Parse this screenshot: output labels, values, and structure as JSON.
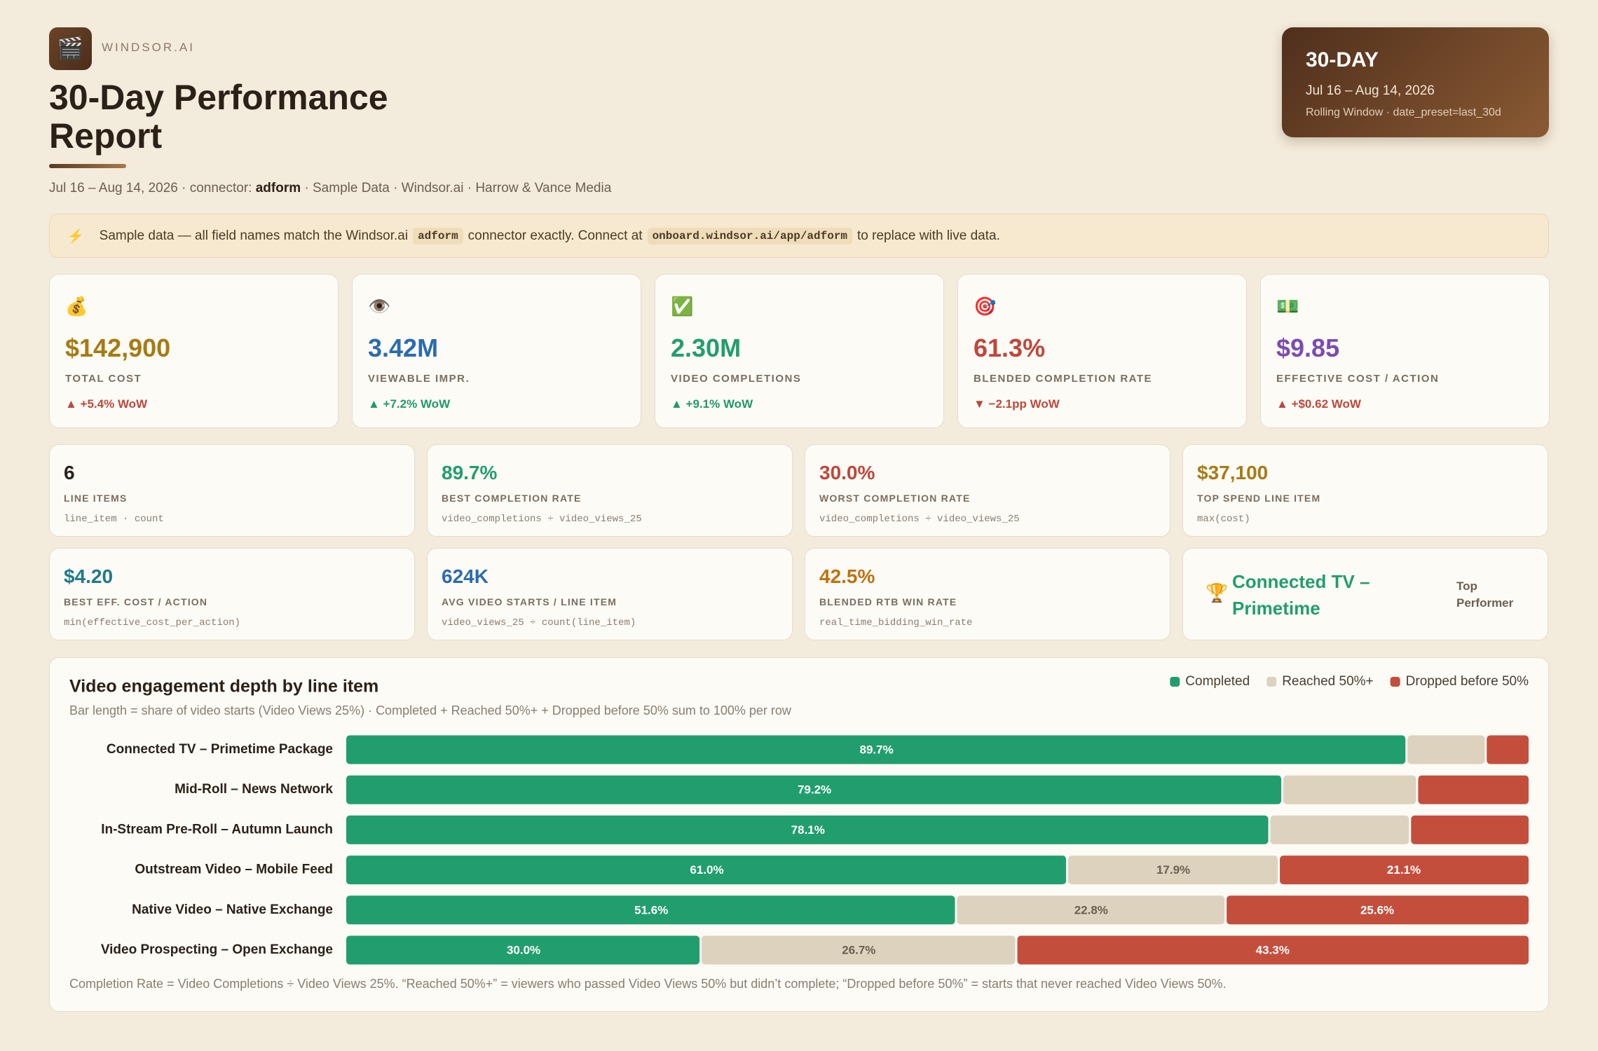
{
  "header": {
    "logo": "🎬",
    "brand": "WINDSOR.AI",
    "title": "30-Day Performance Report",
    "subtitle": {
      "dates": "Jul 16 – Aug 14, 2026 · connector:",
      "connector": "adform",
      "rest": "· Sample Data · Windsor.ai · Harrow & Vance Media"
    },
    "period": {
      "label": "30-DAY",
      "range": "Jul 16 – Aug 14, 2026",
      "note": "Rolling Window · date_preset=last_30d"
    }
  },
  "banner": {
    "icon": "⚡",
    "text_1": "Sample data — all field names match the Windsor.ai",
    "code_1": "adform",
    "text_2": "connector exactly. Connect at",
    "code_2": "onboard.windsor.ai/app/adform",
    "text_3": "to replace with live data."
  },
  "kpis": [
    {
      "icon": "💰",
      "value": "$142,900",
      "label": "TOTAL COST",
      "change": "▲ +5.4% WoW",
      "color": "#a87a12",
      "change_color": "#c0473a"
    },
    {
      "icon": "👁️",
      "value": "3.42M",
      "label": "VIEWABLE IMPR.",
      "change": "▲ +7.2% WoW",
      "color": "#2a6cb0",
      "change_color": "#1f9a68"
    },
    {
      "icon": "✅",
      "value": "2.30M",
      "label": "VIDEO COMPLETIONS",
      "change": "▲ +9.1% WoW",
      "color": "#219e6d",
      "change_color": "#1f9a68"
    },
    {
      "icon": "🎯",
      "value": "61.3%",
      "label": "BLENDED COMPLETION RATE",
      "change": "▼ −2.1pp WoW",
      "color": "#c0473a",
      "change_color": "#c0473a"
    },
    {
      "icon": "💵",
      "value": "$9.85",
      "label": "EFFECTIVE COST / ACTION",
      "change": "▲ +$0.62 WoW",
      "color": "#7d4bb0",
      "change_color": "#c0473a"
    }
  ],
  "stats": [
    {
      "value": "6",
      "label": "LINE ITEMS",
      "formula": "line_item · count",
      "color": "#2b2118"
    },
    {
      "value": "89.7%",
      "label": "BEST COMPLETION RATE",
      "formula": "video_completions ÷ video_views_25",
      "color": "#219e6d"
    },
    {
      "value": "30.0%",
      "label": "WORST COMPLETION RATE",
      "formula": "video_completions ÷ video_views_25",
      "color": "#c0473a"
    },
    {
      "value": "$37,100",
      "label": "TOP SPEND LINE ITEM",
      "formula": "max(cost)",
      "color": "#a87a12"
    },
    {
      "value": "$4.20",
      "label": "BEST EFF. COST / ACTION",
      "formula": "min(effective_cost_per_action)",
      "color": "#1f7a8c"
    },
    {
      "value": "624K",
      "label": "AVG VIDEO STARTS / LINE ITEM",
      "formula": "video_views_25 ÷ count(line_item)",
      "color": "#2a6cb0"
    },
    {
      "value": "42.5%",
      "label": "BLENDED RTB WIN RATE",
      "formula": "real_time_bidding_win_rate",
      "color": "#c0720f"
    }
  ],
  "top_performer": {
    "icon": "🏆",
    "name": "Connected TV – Primetime",
    "label": "Top Performer",
    "color": "#219e6d"
  },
  "chart_data": {
    "type": "stacked-bar-horizontal",
    "title": "Video engagement depth by line item",
    "subtitle": "Bar length = share of video starts (Video Views 25%) · Completed + Reached 50%+ + Dropped before 50% sum to 100% per row",
    "footnote": "Completion Rate = Video Completions ÷ Video Views 25%. “Reached 50%+” = viewers who passed Video Views 50% but didn’t complete; “Dropped before 50%” = starts that never reached Video Views 50%.",
    "categories": [
      "Connected TV – Primetime Package",
      "Mid-Roll – News Network",
      "In-Stream Pre-Roll – Autumn Launch",
      "Outstream Video – Mobile Feed",
      "Native Video – Native Exchange",
      "Video Prospecting – Open Exchange"
    ],
    "xlim": [
      0,
      100
    ],
    "series": [
      {
        "name": "Completed",
        "color": "#219e6d",
        "text_color": "#ffffff",
        "values": [
          89.7,
          79.2,
          78.1,
          61.0,
          51.6,
          30.0
        ],
        "value_labels": [
          "89.7%",
          "79.2%",
          "78.1%",
          "61.0%",
          "51.6%",
          "30.0%"
        ]
      },
      {
        "name": "Reached 50%+",
        "color": "#ddd2bd",
        "text_color": "#6b5f52",
        "values": [
          6.7,
          11.4,
          11.9,
          17.9,
          22.8,
          26.7
        ],
        "value_labels": [
          null,
          null,
          null,
          "17.9%",
          "22.8%",
          "26.7%"
        ]
      },
      {
        "name": "Dropped before 50%",
        "color": "#c44e3c",
        "text_color": "#ffffff",
        "values": [
          3.6,
          9.4,
          10.0,
          21.1,
          25.6,
          43.3
        ],
        "value_labels": [
          null,
          null,
          null,
          "21.1%",
          "25.6%",
          "43.3%"
        ]
      }
    ]
  }
}
